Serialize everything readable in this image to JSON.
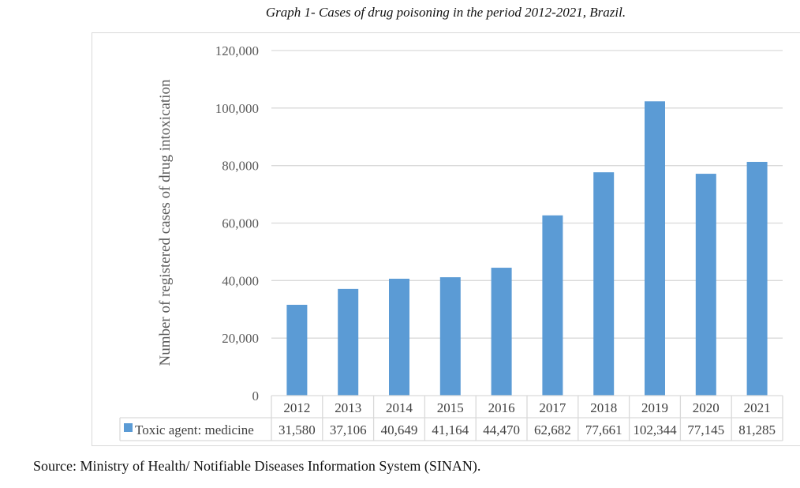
{
  "caption": "Graph 1- Cases of drug poisoning in the period 2012-2021, Brazil.",
  "source": "Source: Ministry of Health/ Notifiable Diseases Information System (SINAN).",
  "colors": {
    "bar": "#5b9bd5",
    "grid": "#d9d9d9",
    "table_border": "#d9d9d9",
    "text": "#595959"
  },
  "chart_data": {
    "type": "bar",
    "title": "Graph 1- Cases of drug poisoning in the period 2012-2021, Brazil.",
    "xlabel": "",
    "ylabel": "Number of registered cases of drug intoxication",
    "categories": [
      "2012",
      "2013",
      "2014",
      "2015",
      "2016",
      "2017",
      "2018",
      "2019",
      "2020",
      "2021"
    ],
    "series": [
      {
        "name": "Toxic agent: medicine",
        "values": [
          31580,
          37106,
          40649,
          41164,
          44470,
          62682,
          77661,
          102344,
          77145,
          81285
        ],
        "labels": [
          "31,580",
          "37,106",
          "40,649",
          "41,164",
          "44,470",
          "62,682",
          "77,661",
          "102,344",
          "77,145",
          "81,285"
        ]
      }
    ],
    "ylim": [
      0,
      120000
    ],
    "yticks": [
      0,
      20000,
      40000,
      60000,
      80000,
      100000,
      120000
    ],
    "ytick_labels": [
      "0",
      "20,000",
      "40,000",
      "60,000",
      "80,000",
      "100,000",
      "120,000"
    ],
    "grid": true,
    "legend": "data-table-left",
    "data_table": true
  }
}
